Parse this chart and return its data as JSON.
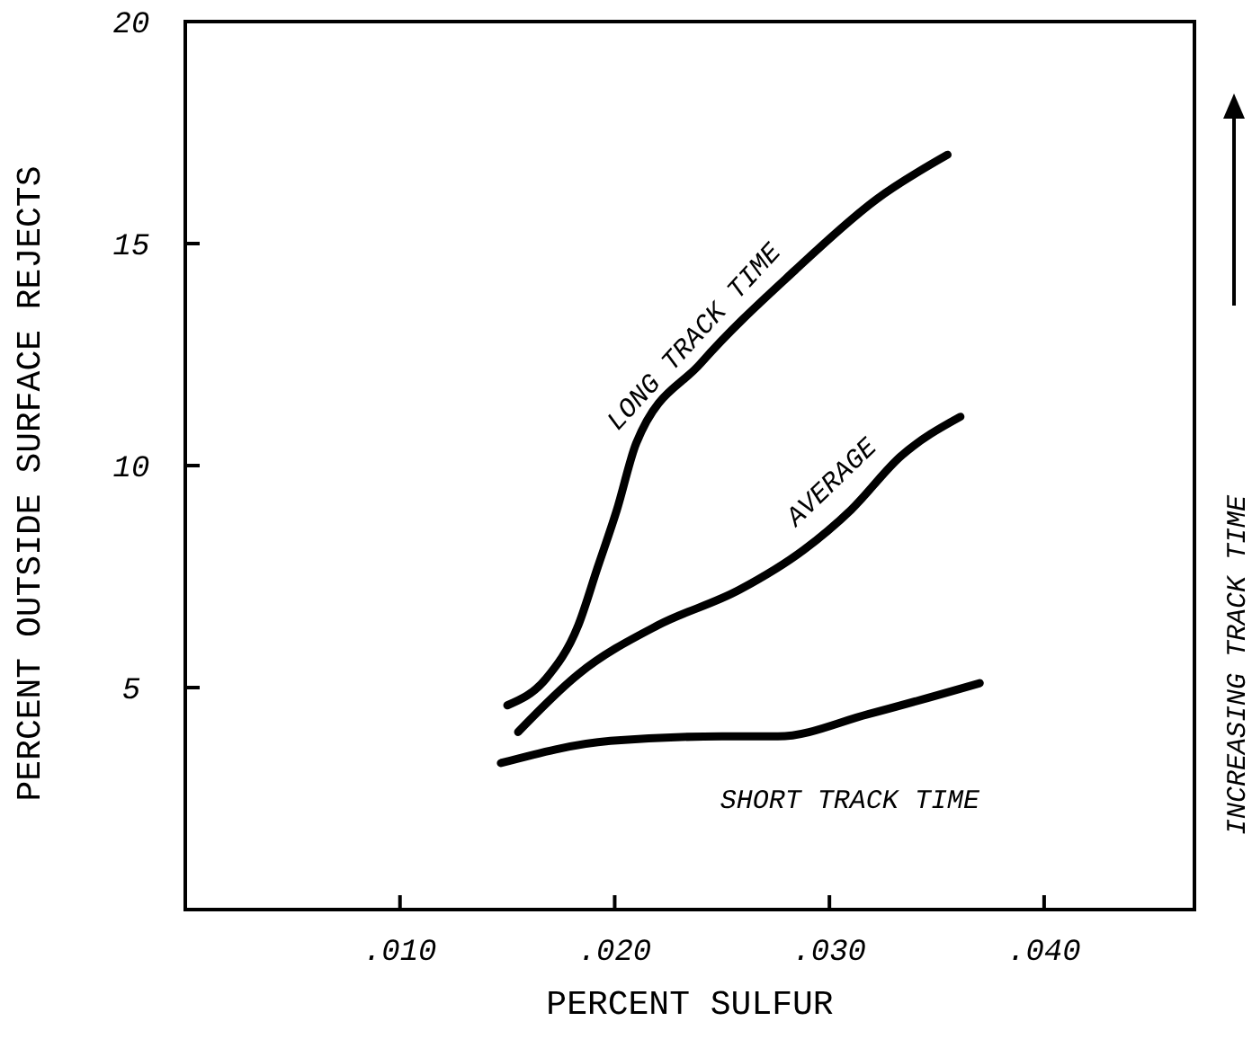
{
  "chart_data": {
    "type": "line",
    "xlabel": "PERCENT SULFUR",
    "ylabel": "PERCENT OUTSIDE SURFACE REJECTS",
    "xlim": [
      0,
      0.047
    ],
    "ylim": [
      0,
      20
    ],
    "xticks": [
      {
        "value": 0.01,
        "label": ".010"
      },
      {
        "value": 0.02,
        "label": ".020"
      },
      {
        "value": 0.03,
        "label": ".030"
      },
      {
        "value": 0.04,
        "label": ".040"
      }
    ],
    "yticks": [
      5,
      10,
      15,
      20
    ],
    "grid": false,
    "marker": "none",
    "line_style": "solid",
    "annotations": [
      "INCREASING TRACK TIME"
    ],
    "series": [
      {
        "name": "LONG TRACK TIME",
        "color": "#000000",
        "x": [
          0.015,
          0.0168,
          0.0183,
          0.0192,
          0.0201,
          0.021,
          0.024,
          0.0284,
          0.0322,
          0.0355
        ],
        "values": [
          4.6,
          5.2,
          6.4,
          7.7,
          9.0,
          10.5,
          12.3,
          14.4,
          16.0,
          17.0
        ]
      },
      {
        "name": "AVERAGE",
        "color": "#000000",
        "x": [
          0.0155,
          0.0183,
          0.022,
          0.0258,
          0.0288,
          0.031,
          0.0333,
          0.0361
        ],
        "values": [
          4.0,
          5.3,
          6.4,
          7.2,
          8.1,
          9.0,
          10.2,
          11.1
        ]
      },
      {
        "name": "SHORT TRACK TIME",
        "color": "#000000",
        "x": [
          0.0147,
          0.0198,
          0.025,
          0.0276,
          0.0318,
          0.037
        ],
        "values": [
          3.3,
          3.8,
          3.9,
          3.9,
          4.4,
          5.1
        ]
      }
    ]
  }
}
